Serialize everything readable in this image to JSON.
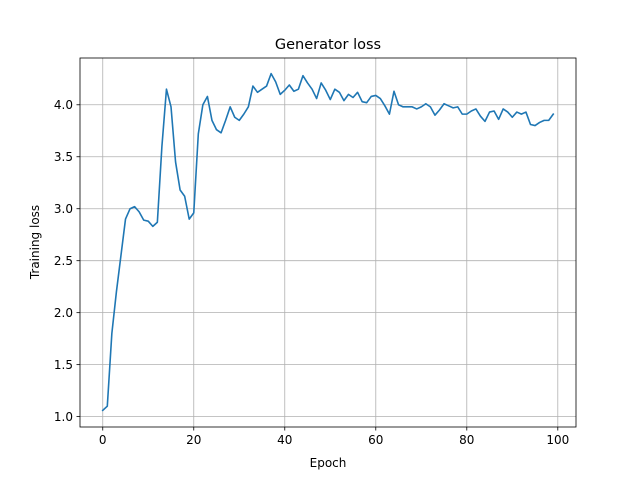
{
  "chart_data": {
    "type": "line",
    "title": "Generator loss",
    "xlabel": "Epoch",
    "ylabel": "Training loss",
    "xlim": [
      -5,
      104
    ],
    "ylim": [
      0.9,
      4.45
    ],
    "x_ticks": [
      0,
      20,
      40,
      60,
      80,
      100
    ],
    "y_ticks": [
      1.0,
      1.5,
      2.0,
      2.5,
      3.0,
      3.5,
      4.0
    ],
    "x_tick_labels": [
      "0",
      "20",
      "40",
      "60",
      "80",
      "100"
    ],
    "y_tick_labels": [
      "1.0",
      "1.5",
      "2.0",
      "2.5",
      "3.0",
      "3.5",
      "4.0"
    ],
    "grid": true,
    "legend": false,
    "series": [
      {
        "color": "#1f77b4",
        "x": [
          0,
          1,
          2,
          3,
          4,
          5,
          6,
          7,
          8,
          9,
          10,
          11,
          12,
          13,
          14,
          15,
          16,
          17,
          18,
          19,
          20,
          21,
          22,
          23,
          24,
          25,
          26,
          27,
          28,
          29,
          30,
          31,
          32,
          33,
          34,
          35,
          36,
          37,
          38,
          39,
          40,
          41,
          42,
          43,
          44,
          45,
          46,
          47,
          48,
          49,
          50,
          51,
          52,
          53,
          54,
          55,
          56,
          57,
          58,
          59,
          60,
          61,
          62,
          63,
          64,
          65,
          66,
          67,
          68,
          69,
          70,
          71,
          72,
          73,
          74,
          75,
          76,
          77,
          78,
          79,
          80,
          81,
          82,
          83,
          84,
          85,
          86,
          87,
          88,
          89,
          90,
          91,
          92,
          93,
          94,
          95,
          96,
          97,
          98,
          99
        ],
        "y": [
          1.06,
          1.1,
          1.8,
          2.2,
          2.55,
          2.9,
          3.0,
          3.02,
          2.97,
          2.89,
          2.88,
          2.83,
          2.87,
          3.6,
          4.15,
          3.98,
          3.45,
          3.18,
          3.12,
          2.9,
          2.96,
          3.72,
          4.0,
          4.08,
          3.85,
          3.76,
          3.73,
          3.85,
          3.98,
          3.88,
          3.85,
          3.91,
          3.98,
          4.18,
          4.12,
          4.15,
          4.18,
          4.3,
          4.22,
          4.1,
          4.14,
          4.19,
          4.13,
          4.15,
          4.28,
          4.21,
          4.15,
          4.06,
          4.21,
          4.14,
          4.05,
          4.15,
          4.12,
          4.04,
          4.1,
          4.07,
          4.12,
          4.03,
          4.02,
          4.08,
          4.09,
          4.06,
          3.99,
          3.91,
          4.13,
          4.0,
          3.98,
          3.98,
          3.98,
          3.96,
          3.98,
          4.01,
          3.98,
          3.9,
          3.95,
          4.01,
          3.99,
          3.97,
          3.98,
          3.91,
          3.91,
          3.94,
          3.96,
          3.89,
          3.84,
          3.93,
          3.94,
          3.86,
          3.96,
          3.93,
          3.88,
          3.93,
          3.91,
          3.93,
          3.81,
          3.8,
          3.83,
          3.85,
          3.85,
          3.91
        ]
      }
    ]
  }
}
